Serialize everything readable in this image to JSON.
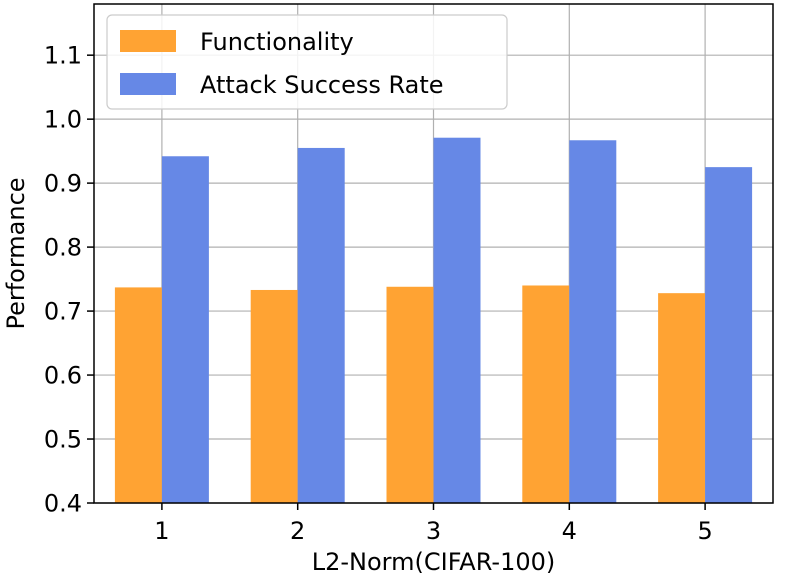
{
  "chart_data": {
    "type": "bar",
    "title": "",
    "xlabel": "L2-Norm(CIFAR-100)",
    "ylabel": "Performance",
    "categories": [
      "1",
      "2",
      "3",
      "4",
      "5"
    ],
    "series": [
      {
        "name": "Functionality",
        "color": "#ffa333",
        "values": [
          0.737,
          0.733,
          0.738,
          0.74,
          0.728
        ]
      },
      {
        "name": "Attack Success Rate",
        "color": "#6688e6",
        "values": [
          0.942,
          0.955,
          0.971,
          0.967,
          0.925
        ]
      }
    ],
    "ylim": [
      0.4,
      1.18
    ],
    "yticks": [
      0.4,
      0.5,
      0.6,
      0.7,
      0.8,
      0.9,
      1.0,
      1.1
    ],
    "ytick_labels": [
      "0.4",
      "0.5",
      "0.6",
      "0.7",
      "0.8",
      "0.9",
      "1.0",
      "1.1"
    ],
    "grid": true,
    "legend_position": "top-left"
  }
}
